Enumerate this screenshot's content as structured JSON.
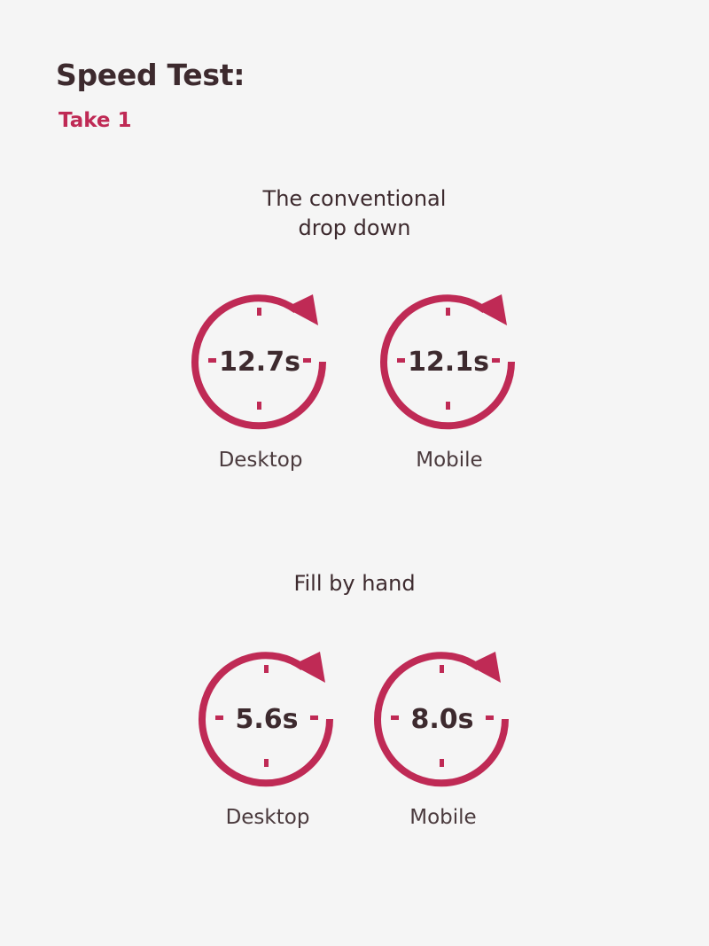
{
  "page": {
    "title": "Speed Test:",
    "subtitle": "Take 1"
  },
  "colors": {
    "accent": "#bf2a55",
    "text": "#3d2a2e",
    "background": "#f5f5f5"
  },
  "sections": [
    {
      "heading_line1": "The conventional",
      "heading_line2": "drop down",
      "timers": [
        {
          "value": "12.7s",
          "label": "Desktop",
          "icon": "stopwatch-icon"
        },
        {
          "value": "12.1s",
          "label": "Mobile",
          "icon": "stopwatch-icon"
        }
      ]
    },
    {
      "heading_line1": "Fill by hand",
      "timers": [
        {
          "value": "5.6s",
          "label": "Desktop",
          "icon": "stopwatch-icon"
        },
        {
          "value": "8.0s",
          "label": "Mobile",
          "icon": "stopwatch-icon"
        }
      ]
    }
  ]
}
